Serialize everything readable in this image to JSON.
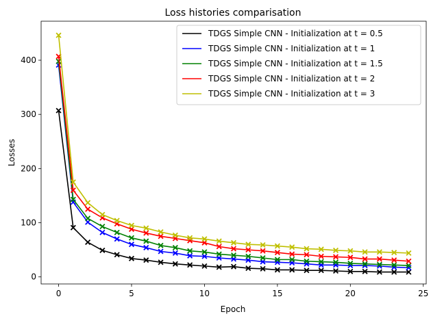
{
  "chart_data": {
    "type": "line",
    "title": "Loss histories comparisation",
    "xlabel": "Epoch",
    "ylabel": "Losses",
    "xlim": [
      -1.2,
      25.2
    ],
    "ylim": [
      -13,
      472
    ],
    "xticks": [
      0,
      5,
      10,
      15,
      20,
      25
    ],
    "yticks": [
      0,
      100,
      200,
      300,
      400
    ],
    "grid": false,
    "legend_position": "top-right",
    "marker": "x",
    "x": [
      0,
      1,
      2,
      3,
      4,
      5,
      6,
      7,
      8,
      9,
      10,
      11,
      12,
      13,
      14,
      15,
      16,
      17,
      18,
      19,
      20,
      21,
      22,
      23,
      24
    ],
    "series": [
      {
        "name": "TDGS Simple CNN - Initialization at t = 0.5",
        "color": "#000000",
        "values": [
          307,
          91,
          64,
          49,
          41,
          34,
          31,
          27,
          24,
          22,
          20,
          18,
          19,
          16,
          15,
          13,
          13,
          12,
          12,
          11,
          10,
          10,
          9,
          9,
          9
        ]
      },
      {
        "name": "TDGS Simple CNN - Initialization at t = 1",
        "color": "#0000ff",
        "values": [
          391,
          138,
          101,
          82,
          70,
          60,
          54,
          47,
          44,
          39,
          38,
          35,
          33,
          31,
          28,
          27,
          26,
          24,
          22,
          22,
          21,
          21,
          20,
          18,
          17
        ]
      },
      {
        "name": "TDGS Simple CNN - Initialization at t = 1.5",
        "color": "#008000",
        "values": [
          398,
          143,
          108,
          93,
          82,
          72,
          66,
          58,
          54,
          48,
          46,
          42,
          40,
          38,
          35,
          32,
          32,
          29,
          28,
          27,
          25,
          24,
          23,
          22,
          21
        ]
      },
      {
        "name": "TDGS Simple CNN - Initialization at t = 2",
        "color": "#ff0000",
        "values": [
          407,
          160,
          125,
          109,
          98,
          88,
          81,
          75,
          71,
          67,
          63,
          56,
          52,
          50,
          48,
          45,
          42,
          41,
          38,
          37,
          36,
          33,
          33,
          31,
          29
        ]
      },
      {
        "name": "TDGS Simple CNN - Initialization at t = 3",
        "color": "#bfbf00",
        "values": [
          446,
          175,
          137,
          115,
          104,
          95,
          90,
          83,
          77,
          72,
          70,
          66,
          63,
          60,
          59,
          57,
          55,
          52,
          51,
          49,
          48,
          46,
          46,
          45,
          44
        ]
      }
    ]
  }
}
